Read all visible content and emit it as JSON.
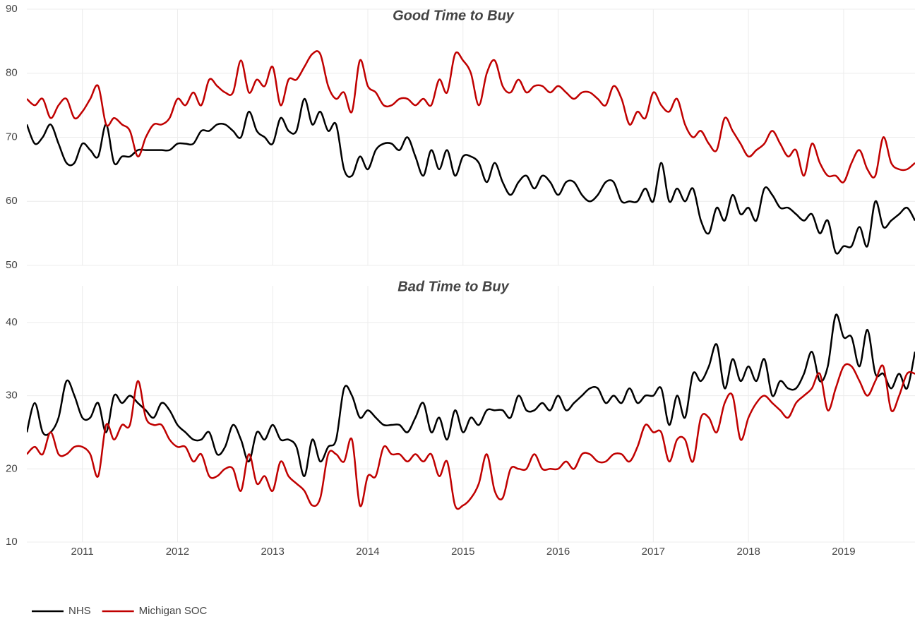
{
  "chart_data": {
    "type": "line",
    "x": [
      "2010-06",
      "2010-07",
      "2010-08",
      "2010-09",
      "2010-10",
      "2010-11",
      "2010-12",
      "2011-01",
      "2011-02",
      "2011-03",
      "2011-04",
      "2011-05",
      "2011-06",
      "2011-07",
      "2011-08",
      "2011-09",
      "2011-10",
      "2011-11",
      "2011-12",
      "2012-01",
      "2012-02",
      "2012-03",
      "2012-04",
      "2012-05",
      "2012-06",
      "2012-07",
      "2012-08",
      "2012-09",
      "2012-10",
      "2012-11",
      "2012-12",
      "2013-01",
      "2013-02",
      "2013-03",
      "2013-04",
      "2013-05",
      "2013-06",
      "2013-07",
      "2013-08",
      "2013-09",
      "2013-10",
      "2013-11",
      "2013-12",
      "2014-01",
      "2014-02",
      "2014-03",
      "2014-04",
      "2014-05",
      "2014-06",
      "2014-07",
      "2014-08",
      "2014-09",
      "2014-10",
      "2014-11",
      "2014-12",
      "2015-01",
      "2015-02",
      "2015-03",
      "2015-04",
      "2015-05",
      "2015-06",
      "2015-07",
      "2015-08",
      "2015-09",
      "2015-10",
      "2015-11",
      "2015-12",
      "2016-01",
      "2016-02",
      "2016-03",
      "2016-04",
      "2016-05",
      "2016-06",
      "2016-07",
      "2016-08",
      "2016-09",
      "2016-10",
      "2016-11",
      "2016-12",
      "2017-01",
      "2017-02",
      "2017-03",
      "2017-04",
      "2017-05",
      "2017-06",
      "2017-07",
      "2017-08",
      "2017-09",
      "2017-10",
      "2017-11",
      "2017-12",
      "2018-01",
      "2018-02",
      "2018-03",
      "2018-04",
      "2018-05",
      "2018-06",
      "2018-07",
      "2018-08",
      "2018-09",
      "2018-10",
      "2018-11",
      "2018-12",
      "2019-01",
      "2019-02",
      "2019-03",
      "2019-04",
      "2019-05",
      "2019-06",
      "2019-07",
      "2019-08",
      "2019-09",
      "2019-10"
    ],
    "xlim": [
      "2010-06",
      "2019-10"
    ],
    "xticks": [
      "2011",
      "2012",
      "2013",
      "2014",
      "2015",
      "2016",
      "2017",
      "2018",
      "2019"
    ],
    "grid": true,
    "legend": "bottom-left",
    "series": [
      {
        "name": "NHS",
        "color": "#000000"
      },
      {
        "name": "Michigan SOC",
        "color": "#c00000"
      }
    ],
    "panels": [
      {
        "title": "Good Time to Buy",
        "ylim": [
          50,
          90
        ],
        "yticks": [
          50,
          60,
          70,
          80,
          90
        ],
        "values": [
          [
            72,
            69,
            70,
            72,
            69,
            66,
            66,
            69,
            68,
            67,
            72,
            66,
            67,
            67,
            68,
            68,
            68,
            68,
            68,
            69,
            69,
            69,
            71,
            71,
            72,
            72,
            71,
            70,
            74,
            71,
            70,
            69,
            73,
            71,
            71,
            76,
            72,
            74,
            71,
            72,
            65,
            64,
            67,
            65,
            68,
            69,
            69,
            68,
            70,
            67,
            64,
            68,
            65,
            68,
            64,
            67,
            67,
            66,
            63,
            66,
            63,
            61,
            63,
            64,
            62,
            64,
            63,
            61,
            63,
            63,
            61,
            60,
            61,
            63,
            63,
            60,
            60,
            60,
            62,
            60,
            66,
            60,
            62,
            60,
            62,
            57,
            55,
            59,
            57,
            61,
            58,
            59,
            57,
            62,
            61,
            59,
            59,
            58,
            57,
            58,
            55,
            57,
            52,
            53,
            53,
            56,
            53,
            60,
            56,
            57,
            58,
            59,
            57
          ],
          [
            76,
            75,
            76,
            73,
            75,
            76,
            73,
            74,
            76,
            78,
            72,
            73,
            72,
            71,
            67,
            70,
            72,
            72,
            73,
            76,
            75,
            77,
            75,
            79,
            78,
            77,
            77,
            82,
            77,
            79,
            78,
            81,
            75,
            79,
            79,
            81,
            83,
            83,
            78,
            76,
            77,
            74,
            82,
            78,
            77,
            75,
            75,
            76,
            76,
            75,
            76,
            75,
            79,
            77,
            83,
            82,
            80,
            75,
            80,
            82,
            78,
            77,
            79,
            77,
            78,
            78,
            77,
            78,
            77,
            76,
            77,
            77,
            76,
            75,
            78,
            76,
            72,
            74,
            73,
            77,
            75,
            74,
            76,
            72,
            70,
            71,
            69,
            68,
            73,
            71,
            69,
            67,
            68,
            69,
            71,
            69,
            67,
            68,
            64,
            69,
            66,
            64,
            64,
            63,
            66,
            68,
            65,
            64,
            70,
            66,
            65,
            65,
            66
          ]
        ]
      },
      {
        "title": "Bad Time to Buy",
        "ylim": [
          10,
          45
        ],
        "yticks": [
          10,
          20,
          30,
          40
        ],
        "values": [
          [
            25,
            29,
            25,
            25,
            27,
            32,
            30,
            27,
            27,
            29,
            25,
            30,
            29,
            30,
            29,
            28,
            27,
            29,
            28,
            26,
            25,
            24,
            24,
            25,
            22,
            23,
            26,
            24,
            21,
            25,
            24,
            26,
            24,
            24,
            23,
            19,
            24,
            21,
            23,
            24,
            31,
            30,
            27,
            28,
            27,
            26,
            26,
            26,
            25,
            27,
            29,
            25,
            27,
            24,
            28,
            25,
            27,
            26,
            28,
            28,
            28,
            27,
            30,
            28,
            28,
            29,
            28,
            30,
            28,
            29,
            30,
            31,
            31,
            29,
            30,
            29,
            31,
            29,
            30,
            30,
            31,
            26,
            30,
            27,
            33,
            32,
            34,
            37,
            31,
            35,
            32,
            34,
            32,
            35,
            30,
            32,
            31,
            31,
            33,
            36,
            32,
            34,
            41,
            38,
            38,
            34,
            39,
            33,
            33,
            31,
            33,
            31,
            36
          ],
          [
            22,
            23,
            22,
            25,
            22,
            22,
            23,
            23,
            22,
            19,
            26,
            24,
            26,
            26,
            32,
            27,
            26,
            26,
            24,
            23,
            23,
            21,
            22,
            19,
            19,
            20,
            20,
            17,
            22,
            18,
            19,
            17,
            21,
            19,
            18,
            17,
            15,
            16,
            22,
            22,
            21,
            24,
            15,
            19,
            19,
            23,
            22,
            22,
            21,
            22,
            21,
            22,
            19,
            21,
            15,
            15,
            16,
            18,
            22,
            17,
            16,
            20,
            20,
            20,
            22,
            20,
            20,
            20,
            21,
            20,
            22,
            22,
            21,
            21,
            22,
            22,
            21,
            23,
            26,
            25,
            25,
            21,
            24,
            24,
            21,
            27,
            27,
            25,
            29,
            30,
            24,
            27,
            29,
            30,
            29,
            28,
            27,
            29,
            30,
            31,
            33,
            28,
            31,
            34,
            34,
            32,
            30,
            32,
            34,
            28,
            30,
            33,
            33
          ]
        ]
      }
    ]
  }
}
